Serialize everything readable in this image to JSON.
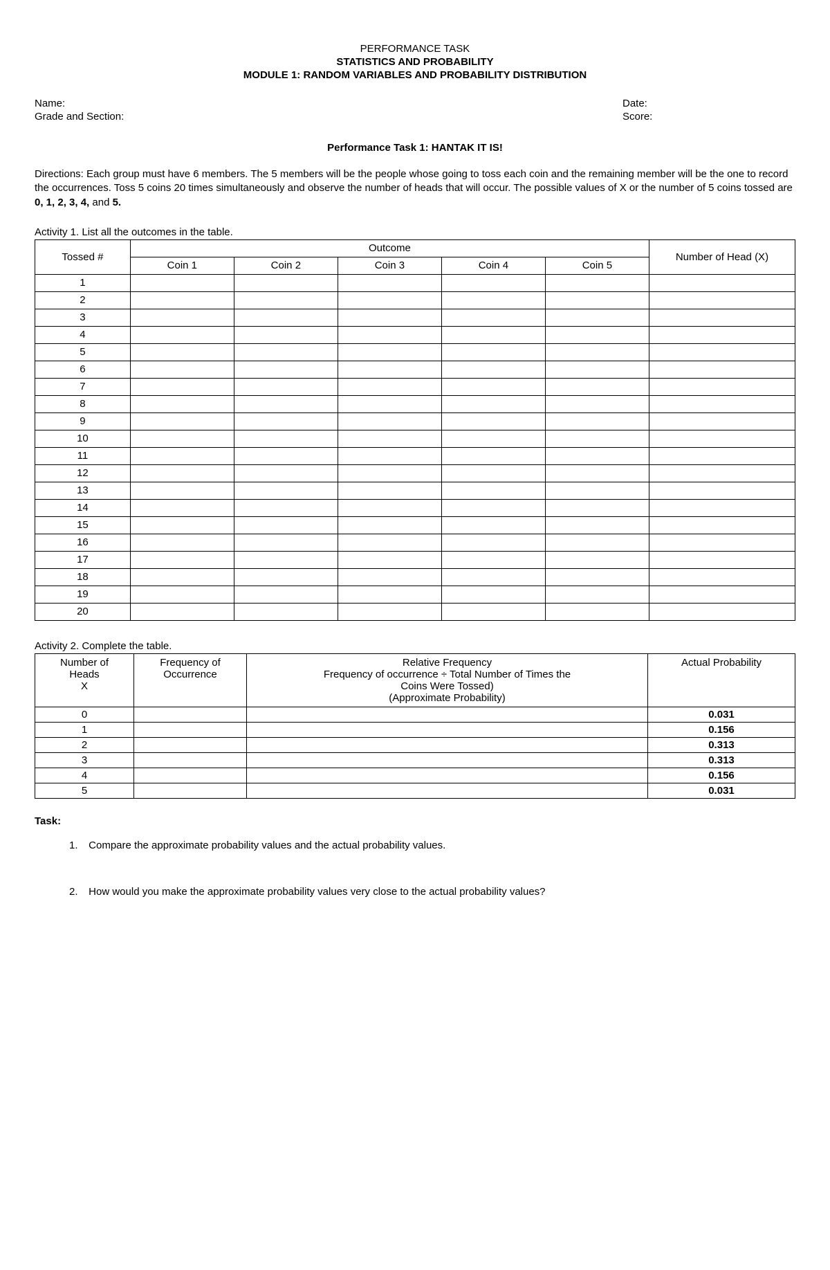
{
  "header": {
    "line1": "PERFORMANCE TASK",
    "line2": "STATISTICS AND PROBABILITY",
    "line3": "MODULE 1: RANDOM VARIABLES AND PROBABILITY DISTRIBUTION"
  },
  "info": {
    "name_label": "Name:",
    "date_label": "Date:",
    "grade_label": "Grade and Section:",
    "score_label": "Score:"
  },
  "task_title": "Performance Task 1: HANTAK IT IS!",
  "directions_label": "Directions: ",
  "directions_text": "Each group must have 6 members. The 5 members will be the people whose going to toss each coin and the remaining member will be the one to record the occurrences. Toss 5 coins 20 times simultaneously and observe the number of heads that will occur. The possible values of X or the number of 5 coins tossed are ",
  "directions_values": "0, 1, 2, 3, 4,",
  "directions_and": " and ",
  "directions_last": "5.",
  "activity1": {
    "label": "Activity 1. List all the outcomes in the table.",
    "tossed_header": "Tossed #",
    "outcome_header": "Outcome",
    "numheads_header": "Number of Head (X)",
    "coins": [
      "Coin 1",
      "Coin 2",
      "Coin 3",
      "Coin 4",
      "Coin 5"
    ],
    "rows": [
      "1",
      "2",
      "3",
      "4",
      "5",
      "6",
      "7",
      "8",
      "9",
      "10",
      "11",
      "12",
      "13",
      "14",
      "15",
      "16",
      "17",
      "18",
      "19",
      "20"
    ]
  },
  "activity2": {
    "label": "Activity 2. Complete the table.",
    "col1_l1": "Number of",
    "col1_l2": "Heads",
    "col1_l3": "X",
    "col2_l1": "Frequency of",
    "col2_l2": "Occurrence",
    "col3_l1": "Relative Frequency",
    "col3_l2": "Frequency of occurrence ÷ Total Number of Times the",
    "col3_l3": "Coins Were Tossed)",
    "col3_l4": "(Approximate Probability)",
    "col4": "Actual Probability",
    "rows": [
      {
        "x": "0",
        "prob": "0.031"
      },
      {
        "x": "1",
        "prob": "0.156"
      },
      {
        "x": "2",
        "prob": "0.313"
      },
      {
        "x": "3",
        "prob": "0.313"
      },
      {
        "x": "4",
        "prob": "0.156"
      },
      {
        "x": "5",
        "prob": "0.031"
      }
    ]
  },
  "tasks": {
    "label": "Task:",
    "items": [
      {
        "num": "1.",
        "text": "Compare the approximate probability values and the actual probability values."
      },
      {
        "num": "2.",
        "text": "How would you make the approximate probability values very close to the actual probability values?"
      }
    ]
  }
}
